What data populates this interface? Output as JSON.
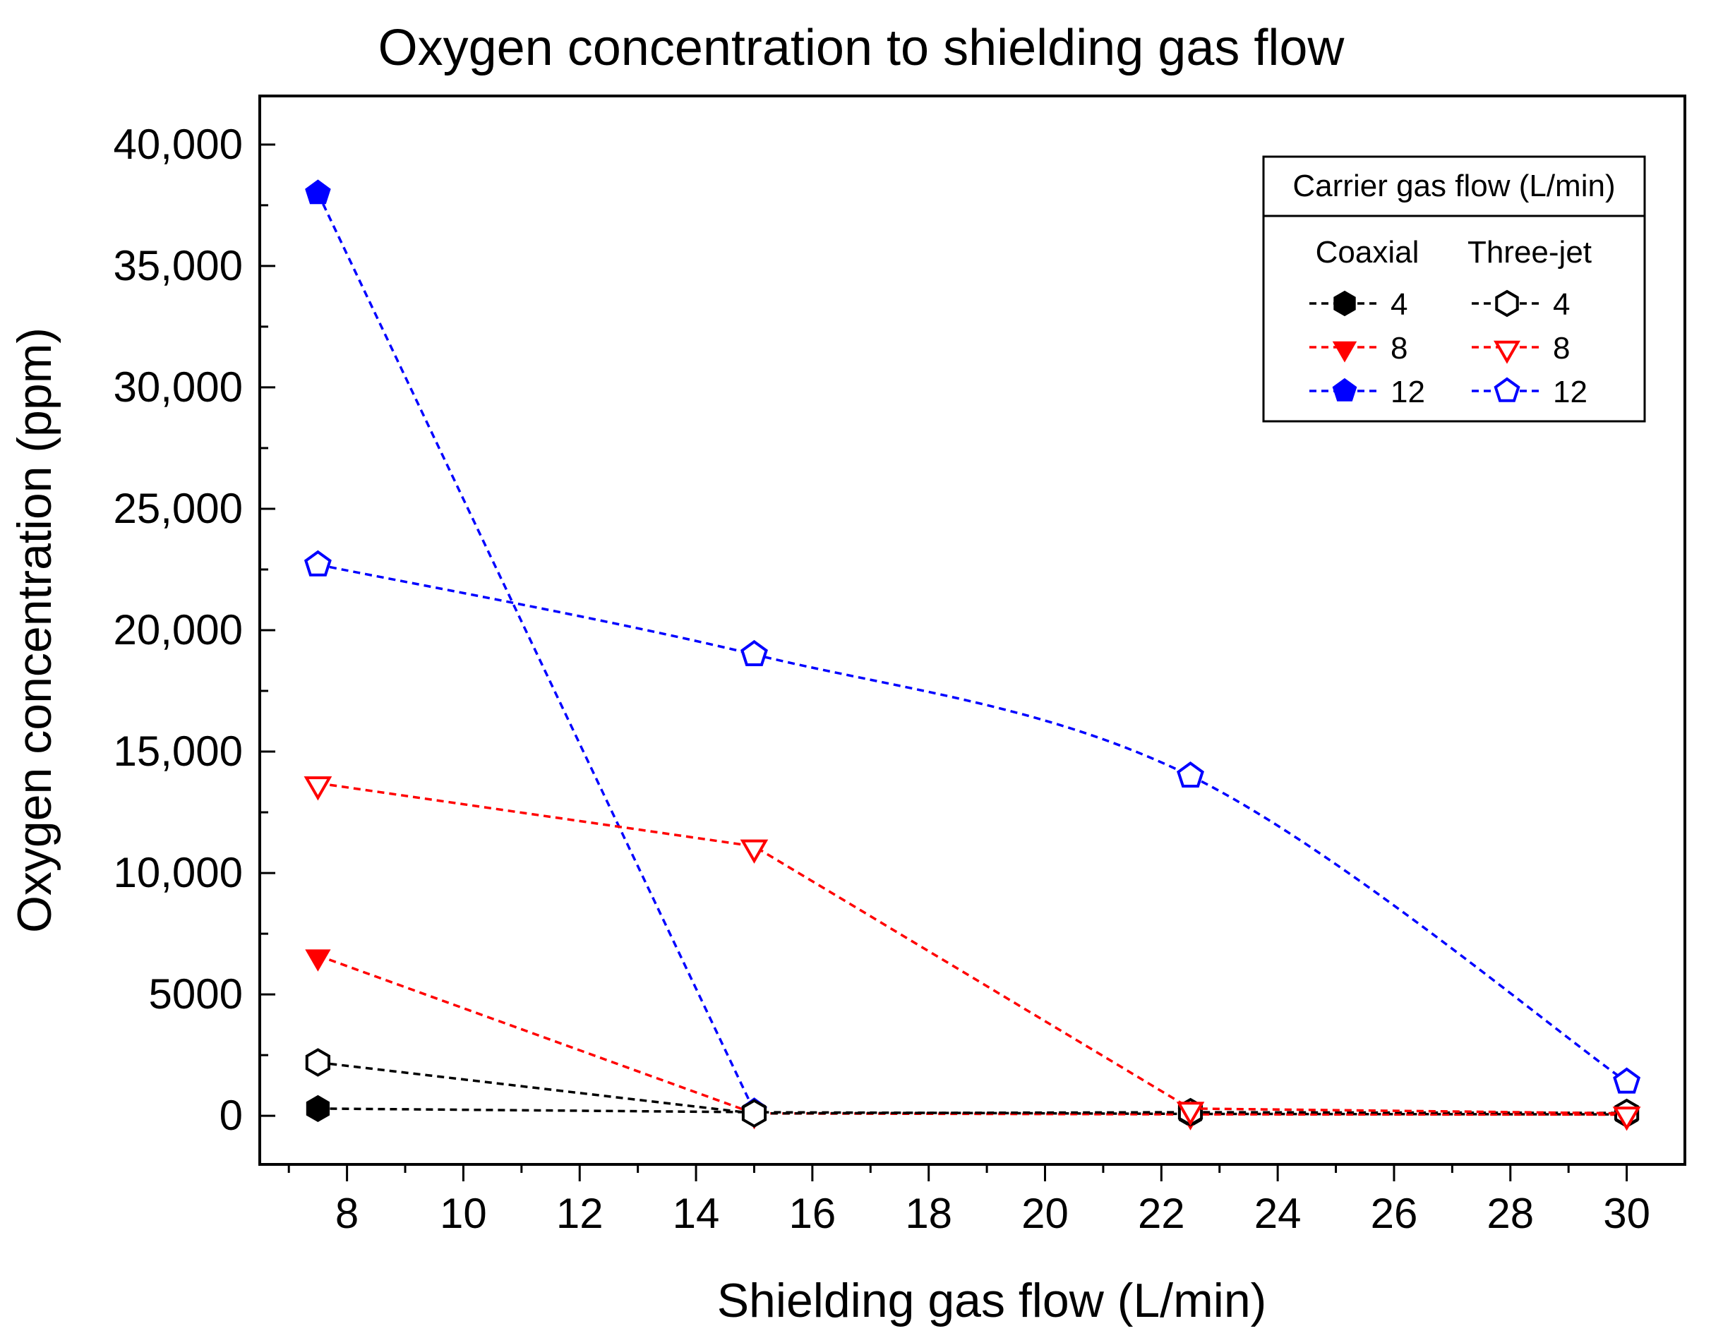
{
  "chart_data": {
    "type": "line",
    "title": "Oxygen concentration to shielding gas flow",
    "xlabel": "Shielding gas flow (L/min)",
    "ylabel": "Oxygen concentration (ppm)",
    "xlim": [
      6.5,
      31
    ],
    "ylim": [
      -2000,
      42000
    ],
    "xticks": [
      8,
      10,
      12,
      14,
      16,
      18,
      20,
      22,
      24,
      26,
      28,
      30
    ],
    "yticks": [
      {
        "value": 0,
        "label": "0"
      },
      {
        "value": 5000,
        "label": "5000"
      },
      {
        "value": 10000,
        "label": "10,000"
      },
      {
        "value": 15000,
        "label": "15,000"
      },
      {
        "value": 20000,
        "label": "20,000"
      },
      {
        "value": 25000,
        "label": "25,000"
      },
      {
        "value": 30000,
        "label": "30,000"
      },
      {
        "value": 35000,
        "label": "35,000"
      },
      {
        "value": 40000,
        "label": "40,000"
      }
    ],
    "grid": false,
    "series": [
      {
        "name": "Coaxial 4",
        "nozzle": "Coaxial",
        "carrier": "4",
        "color": "#000000",
        "marker": "hexagon",
        "filled": true,
        "x": [
          7.5,
          15,
          22.5,
          30
        ],
        "y": [
          300,
          150,
          80,
          60
        ]
      },
      {
        "name": "Coaxial 8",
        "nozzle": "Coaxial",
        "carrier": "8",
        "color": "#ff0000",
        "marker": "triangle-down",
        "filled": true,
        "x": [
          7.5,
          15,
          22.5,
          30
        ],
        "y": [
          6600,
          100,
          60,
          50
        ]
      },
      {
        "name": "Coaxial 12",
        "nozzle": "Coaxial",
        "carrier": "12",
        "color": "#0000ff",
        "marker": "pentagon",
        "filled": true,
        "x": [
          7.5,
          15
        ],
        "y": [
          38000,
          200
        ]
      },
      {
        "name": "Three-jet 4",
        "nozzle": "Three-jet",
        "carrier": "4",
        "color": "#000000",
        "marker": "hexagon",
        "filled": false,
        "x": [
          7.5,
          15,
          22.5,
          30
        ],
        "y": [
          2200,
          100,
          150,
          120
        ]
      },
      {
        "name": "Three-jet 8",
        "nozzle": "Three-jet",
        "carrier": "8",
        "color": "#ff0000",
        "marker": "triangle-down",
        "filled": false,
        "x": [
          7.5,
          15,
          22.5,
          30
        ],
        "y": [
          13700,
          11100,
          300,
          100
        ]
      },
      {
        "name": "Three-jet 12",
        "nozzle": "Three-jet",
        "carrier": "12",
        "color": "#0000ff",
        "marker": "pentagon",
        "filled": false,
        "x": [
          7.5,
          15,
          22.5,
          30
        ],
        "y": [
          22700,
          19000,
          14000,
          1400
        ]
      }
    ],
    "legend": {
      "position": "top-right",
      "title": "Carrier gas flow (L/min)",
      "col_headers": [
        "Coaxial",
        "Three-jet"
      ],
      "rows": [
        {
          "label": "4",
          "left_series": 0,
          "right_series": 3
        },
        {
          "label": "8",
          "left_series": 1,
          "right_series": 4
        },
        {
          "label": "12",
          "left_series": 2,
          "right_series": 5
        }
      ]
    }
  }
}
